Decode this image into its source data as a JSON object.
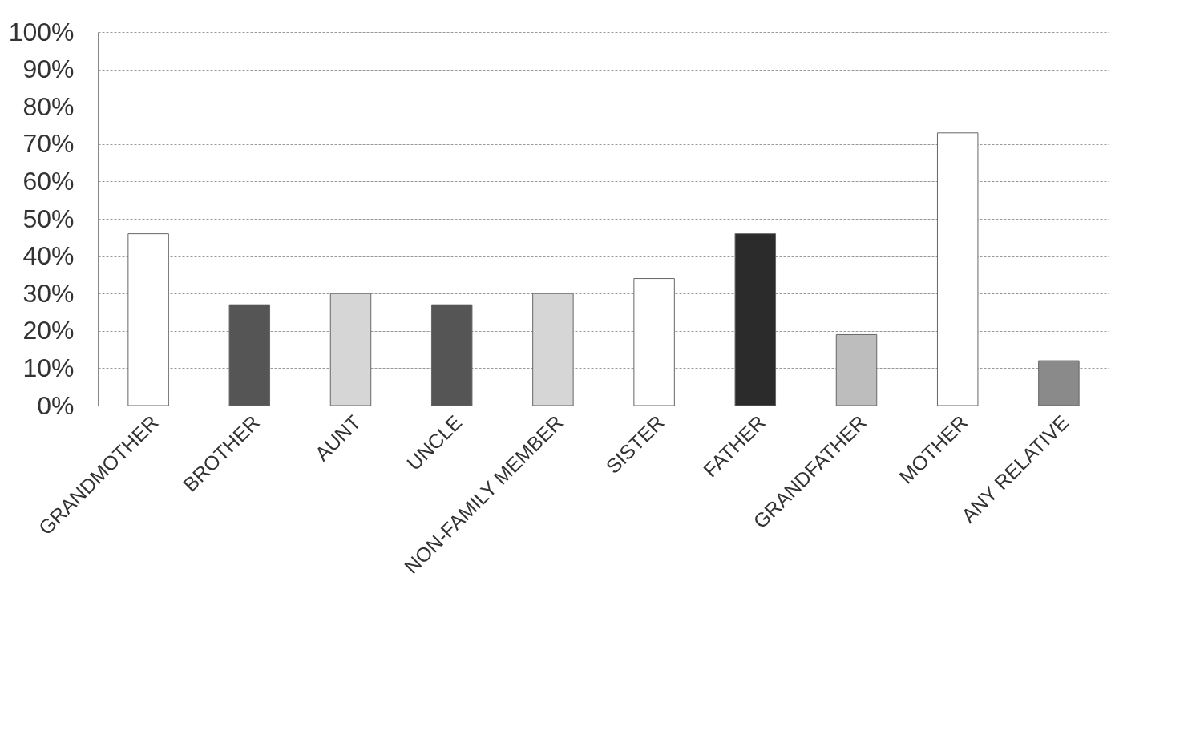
{
  "chart_data": {
    "type": "bar",
    "categories": [
      "GRANDMOTHER",
      "BROTHER",
      "AUNT",
      "UNCLE",
      "NON-FAMILY MEMBER",
      "SISTER",
      "FATHER",
      "GRANDFATHER",
      "MOTHER",
      "ANY RELATIVE"
    ],
    "values": [
      46,
      27,
      30,
      27,
      30,
      34,
      46,
      19,
      73,
      12
    ],
    "colors": [
      "#ffffff",
      "#555555",
      "#d6d6d6",
      "#555555",
      "#d6d6d6",
      "#ffffff",
      "#2b2b2b",
      "#bdbdbd",
      "#ffffff",
      "#8a8a8a"
    ],
    "ylim": [
      0,
      100
    ],
    "yticks": [
      {
        "value": 0,
        "label": "0%"
      },
      {
        "value": 10,
        "label": "10%"
      },
      {
        "value": 20,
        "label": "20%"
      },
      {
        "value": 30,
        "label": "30%"
      },
      {
        "value": 40,
        "label": "40%"
      },
      {
        "value": 50,
        "label": "50%"
      },
      {
        "value": 60,
        "label": "60%"
      },
      {
        "value": 70,
        "label": "70%"
      },
      {
        "value": 80,
        "label": "80%"
      },
      {
        "value": 90,
        "label": "90%"
      },
      {
        "value": 100,
        "label": "100%"
      }
    ],
    "grid": "y"
  }
}
